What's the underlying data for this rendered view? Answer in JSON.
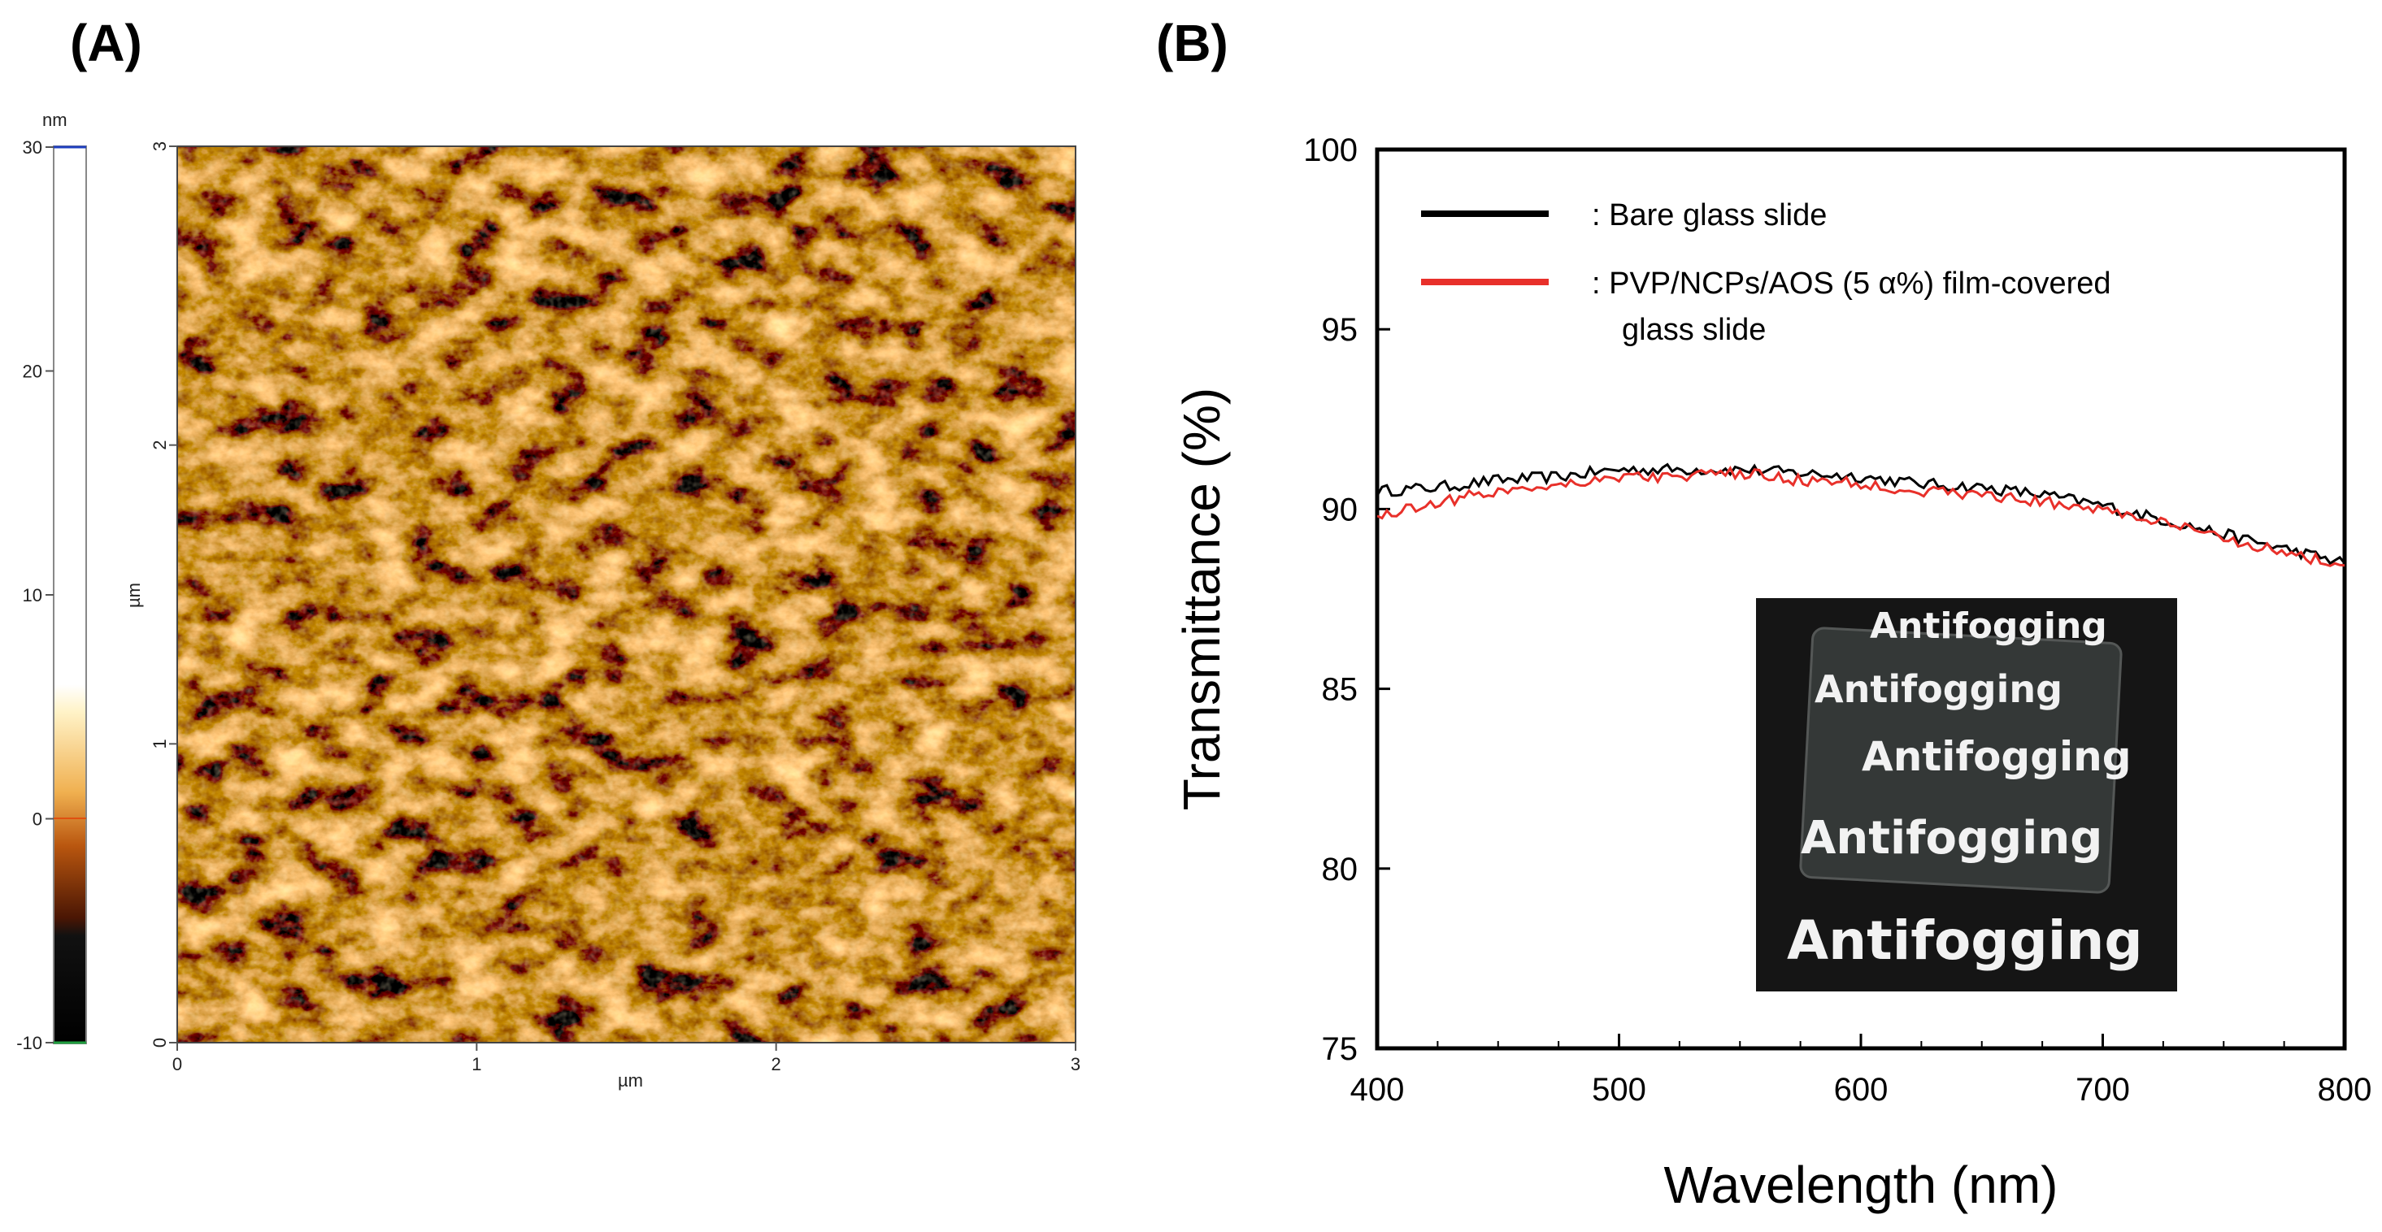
{
  "panels": {
    "a_label": "(A)",
    "b_label": "(B)"
  },
  "afm": {
    "colorbar_unit": "nm",
    "colorbar_ticks": [
      "30",
      "20",
      "10",
      "0",
      "-10"
    ],
    "x_ticks": [
      "0",
      "1",
      "2",
      "3"
    ],
    "y_ticks": [
      "0",
      "1",
      "2",
      "3"
    ],
    "x_label": "µm",
    "y_label": "µm",
    "colors": {
      "dark": "#2a0d02",
      "mid": "#b8500c",
      "light": "#fff1c4"
    }
  },
  "chart_data": {
    "type": "line",
    "xlabel": "Wavelength (nm)",
    "ylabel": "Transmittance  (%)",
    "xlim": [
      400,
      800
    ],
    "ylim": [
      75,
      100
    ],
    "x_ticks": [
      400,
      500,
      600,
      700,
      800
    ],
    "y_ticks": [
      75,
      80,
      85,
      90,
      95,
      100
    ],
    "x": [
      400,
      425,
      450,
      475,
      500,
      525,
      550,
      575,
      600,
      625,
      650,
      675,
      700,
      725,
      750,
      775,
      800
    ],
    "series": [
      {
        "name": ": Bare glass slide",
        "color": "#000000",
        "values": [
          90.5,
          90.6,
          90.8,
          90.9,
          91.1,
          91.1,
          91.1,
          91.0,
          90.9,
          90.7,
          90.6,
          90.4,
          90.1,
          89.7,
          89.3,
          88.9,
          88.5
        ]
      },
      {
        "name": ": PVP/NCPs/AOS (5 α%) film-covered",
        "name_line2": "glass slide",
        "color": "#e8302a",
        "values": [
          89.8,
          90.2,
          90.5,
          90.7,
          90.9,
          90.9,
          91.0,
          90.8,
          90.7,
          90.5,
          90.4,
          90.2,
          90.0,
          89.6,
          89.2,
          88.8,
          88.4
        ]
      }
    ],
    "inset_text": "Antifogging"
  }
}
